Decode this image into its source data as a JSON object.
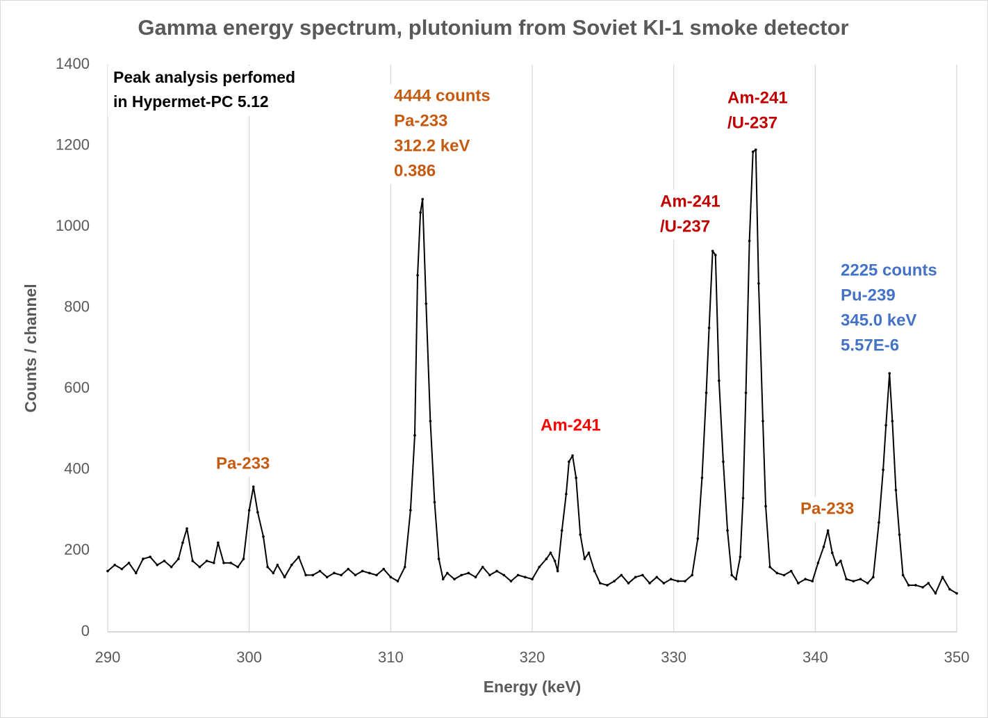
{
  "chart_data": {
    "type": "line",
    "title": "Gamma energy spectrum, plutonium from Soviet KI-1 smoke detector",
    "x_label": "Energy (keV)",
    "y_label": "Counts / channel",
    "color": "#000000",
    "grid": "x",
    "xlim": [
      290,
      350
    ],
    "xticks": [
      290,
      300,
      310,
      320,
      330,
      340,
      350
    ],
    "ylim": [
      0,
      1400
    ],
    "yticks": [
      0,
      200,
      400,
      600,
      800,
      1000,
      1200,
      1400
    ],
    "x": [
      290,
      290.5,
      291,
      291.5,
      292,
      292.5,
      293,
      293.5,
      294,
      294.5,
      295,
      295.3,
      295.6,
      296,
      296.5,
      297,
      297.5,
      297.8,
      298.2,
      298.7,
      299.2,
      299.6,
      300,
      300.3,
      300.6,
      301,
      301.3,
      301.7,
      302,
      302.5,
      303,
      303.5,
      304,
      304.5,
      305,
      305.5,
      306,
      306.5,
      307,
      307.5,
      308,
      308.5,
      309,
      309.5,
      310,
      310.5,
      311,
      311.4,
      311.7,
      311.9,
      312.1,
      312.25,
      312.5,
      312.8,
      313.1,
      313.4,
      313.7,
      314,
      314.5,
      315,
      315.5,
      316,
      316.5,
      317,
      317.5,
      318,
      318.5,
      319,
      319.5,
      320,
      320.5,
      321,
      321.3,
      321.6,
      321.8,
      322.1,
      322.4,
      322.6,
      322.85,
      323.1,
      323.4,
      323.7,
      324,
      324.4,
      324.8,
      325.3,
      325.8,
      326.3,
      326.8,
      327.3,
      327.8,
      328.3,
      328.8,
      329.3,
      329.8,
      330.3,
      330.8,
      331.3,
      331.7,
      332,
      332.3,
      332.5,
      332.75,
      332.95,
      333.2,
      333.5,
      333.8,
      334.1,
      334.4,
      334.7,
      334.9,
      335.1,
      335.35,
      335.6,
      335.8,
      336,
      336.3,
      336.5,
      336.8,
      337.3,
      337.8,
      338.3,
      338.8,
      339.3,
      339.8,
      340.2,
      340.6,
      340.9,
      341.2,
      341.5,
      341.8,
      342.2,
      342.7,
      343.2,
      343.7,
      344.1,
      344.5,
      344.8,
      345,
      345.25,
      345.45,
      345.7,
      345.95,
      346.2,
      346.6,
      347.1,
      347.6,
      348,
      348.5,
      349,
      349.5,
      350
    ],
    "values": [
      150,
      165,
      155,
      170,
      145,
      180,
      185,
      165,
      175,
      160,
      180,
      220,
      255,
      175,
      160,
      175,
      170,
      220,
      170,
      170,
      160,
      180,
      300,
      358,
      295,
      235,
      160,
      145,
      165,
      135,
      165,
      185,
      140,
      140,
      150,
      135,
      145,
      140,
      155,
      140,
      150,
      145,
      140,
      155,
      135,
      125,
      160,
      300,
      485,
      880,
      1035,
      1068,
      810,
      520,
      320,
      180,
      130,
      145,
      130,
      140,
      145,
      135,
      160,
      140,
      150,
      140,
      125,
      140,
      135,
      130,
      160,
      180,
      195,
      175,
      150,
      250,
      340,
      420,
      435,
      380,
      240,
      180,
      195,
      150,
      120,
      115,
      125,
      140,
      120,
      135,
      140,
      120,
      135,
      120,
      130,
      125,
      125,
      140,
      230,
      380,
      590,
      750,
      940,
      930,
      620,
      420,
      250,
      140,
      130,
      185,
      330,
      590,
      965,
      1185,
      1190,
      860,
      520,
      310,
      160,
      145,
      140,
      150,
      120,
      130,
      125,
      170,
      210,
      250,
      195,
      165,
      175,
      130,
      125,
      130,
      120,
      135,
      270,
      400,
      510,
      638,
      520,
      350,
      240,
      140,
      115,
      115,
      110,
      120,
      95,
      135,
      105,
      95
    ],
    "annotations": [
      {
        "lines": [
          "Peak analysis perfomed",
          "in Hypermet-PC 5.12"
        ],
        "color": "#000000"
      },
      {
        "lines": [
          "4444 counts",
          "Pa-233",
          "312.2 keV",
          "0.386"
        ],
        "color": "#c55a11"
      },
      {
        "lines": [
          "Am-241",
          "/U-237"
        ],
        "color": "#c00000"
      },
      {
        "lines": [
          "Am-241",
          "/U-237"
        ],
        "color": "#c00000"
      },
      {
        "lines": [
          "2225 counts",
          "Pu-239",
          "345.0 keV",
          "5.57E-6"
        ],
        "color": "#4472c4"
      },
      {
        "lines": [
          "Am-241"
        ],
        "color": "#ff0000"
      },
      {
        "lines": [
          "Pa-233"
        ],
        "color": "#c55a11"
      },
      {
        "lines": [
          "Pa-233"
        ],
        "color": "#c55a11"
      }
    ]
  }
}
